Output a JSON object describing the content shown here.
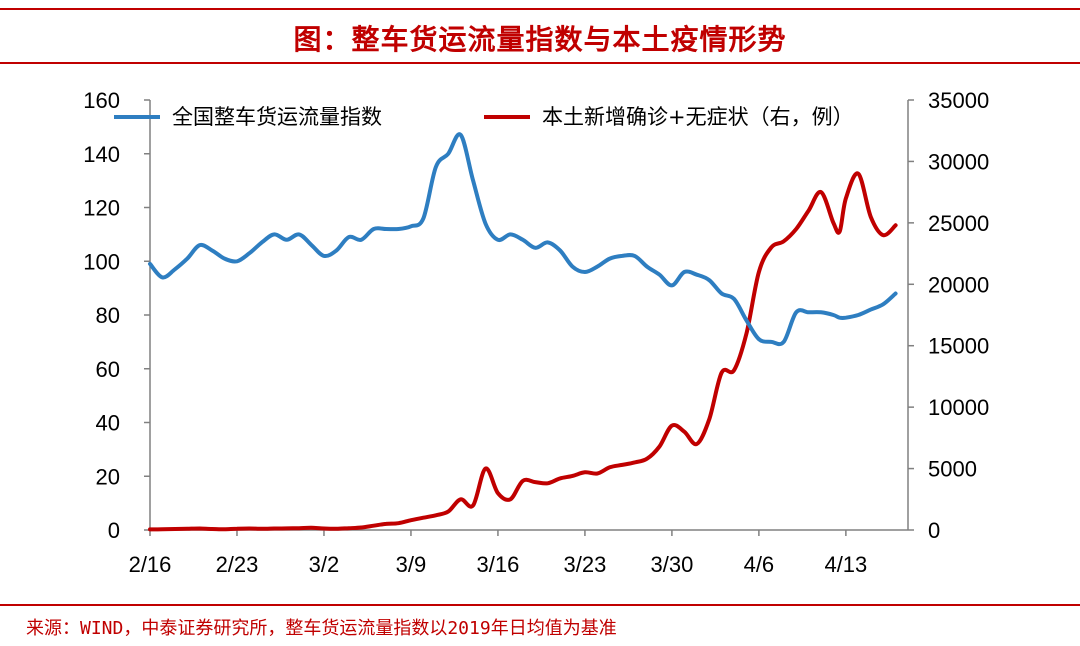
{
  "title": "图：整车货运流量指数与本土疫情形势",
  "source": "来源：WIND，中泰证券研究所，整车货运流量指数以2019年日均值为基准",
  "chart_data": {
    "type": "line",
    "legend_position": "top",
    "x_ticks": [
      "2/16",
      "2/23",
      "3/2",
      "3/9",
      "3/16",
      "3/23",
      "3/30",
      "4/6",
      "4/13"
    ],
    "x_range": [
      0,
      61
    ],
    "y_left": {
      "min": 0,
      "max": 160,
      "ticks": [
        0,
        20,
        40,
        60,
        80,
        100,
        120,
        140,
        160
      ]
    },
    "y_right": {
      "min": 0,
      "max": 35000,
      "ticks": [
        0,
        5000,
        10000,
        15000,
        20000,
        25000,
        30000,
        35000
      ]
    },
    "series": [
      {
        "name": "全国整车货运流量指数",
        "axis": "left",
        "color": "#2e7ec1",
        "x": [
          0,
          1,
          2,
          3,
          4,
          5,
          6,
          7,
          8,
          9,
          10,
          11,
          12,
          13,
          14,
          15,
          16,
          17,
          18,
          19,
          20,
          21,
          22,
          23,
          24,
          25,
          26,
          27,
          28,
          29,
          30,
          31,
          32,
          33,
          34,
          35,
          36,
          37,
          38,
          39,
          40,
          41,
          42,
          43,
          44,
          45,
          46,
          47,
          48,
          49,
          50,
          51,
          52,
          53,
          54,
          55,
          55.5,
          56,
          57,
          58,
          59,
          60
        ],
        "values": [
          99,
          94,
          97,
          101,
          106,
          104,
          101,
          100,
          103,
          107,
          110,
          108,
          110,
          106,
          102,
          104,
          109,
          108,
          112,
          112,
          112,
          113,
          116,
          135,
          140,
          147,
          130,
          114,
          108,
          110,
          108,
          105,
          107,
          104,
          98,
          96,
          98,
          101,
          102,
          102,
          98,
          95,
          91,
          96,
          95,
          93,
          88,
          86,
          78,
          71,
          70,
          70,
          81,
          81,
          81,
          80,
          79,
          79,
          80,
          82,
          84,
          88
        ]
      },
      {
        "name": "本土新增确诊+无症状（右，例）",
        "axis": "right",
        "color": "#c00000",
        "x": [
          0,
          1,
          2,
          3,
          4,
          5,
          6,
          7,
          8,
          9,
          10,
          11,
          12,
          13,
          14,
          15,
          16,
          17,
          18,
          19,
          20,
          21,
          22,
          23,
          24,
          25,
          26,
          27,
          28,
          29,
          30,
          31,
          32,
          33,
          34,
          35,
          36,
          37,
          38,
          39,
          40,
          41,
          42,
          43,
          44,
          45,
          46,
          47,
          48,
          49,
          50,
          51,
          52,
          53,
          54,
          55,
          55.5,
          56,
          57,
          58,
          59,
          60
        ],
        "values": [
          50,
          60,
          80,
          100,
          120,
          80,
          60,
          100,
          120,
          100,
          120,
          130,
          150,
          180,
          120,
          100,
          150,
          200,
          350,
          500,
          550,
          800,
          1000,
          1200,
          1500,
          2500,
          2000,
          5000,
          3000,
          2500,
          4000,
          3900,
          3800,
          4200,
          4400,
          4700,
          4600,
          5100,
          5300,
          5500,
          5800,
          6800,
          8500,
          8000,
          7000,
          9000,
          12800,
          13000,
          16000,
          21000,
          23000,
          23500,
          24500,
          26000,
          27500,
          25000,
          24300,
          27000,
          29000,
          25500,
          24000,
          24800
        ]
      }
    ]
  }
}
